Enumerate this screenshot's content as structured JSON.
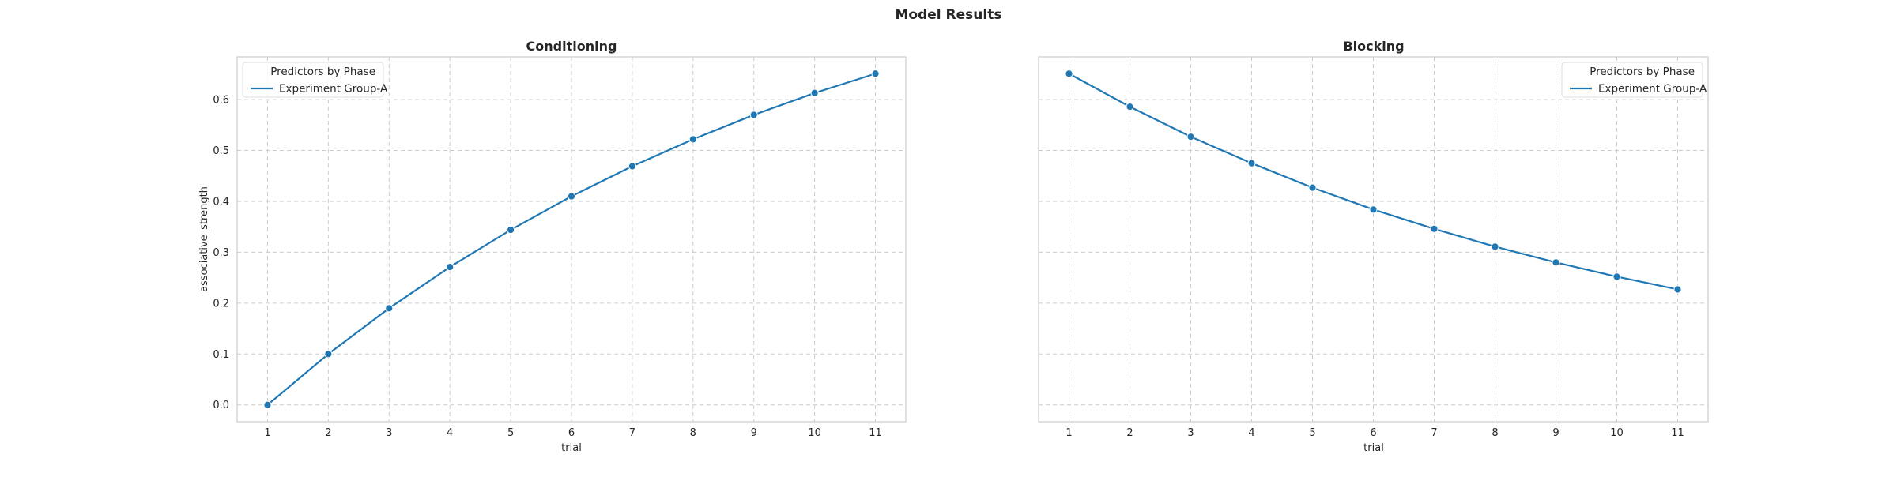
{
  "figure": {
    "title": "Model Results",
    "series_color": "#1f77b4"
  },
  "chart_data": [
    {
      "type": "line",
      "title": "Conditioning",
      "xlabel": "trial",
      "ylabel": "associative_strength",
      "x": [
        1,
        2,
        3,
        4,
        5,
        6,
        7,
        8,
        9,
        10,
        11
      ],
      "series": [
        {
          "name": "Experiment Group-A",
          "values": [
            0.0,
            0.1,
            0.19,
            0.271,
            0.344,
            0.41,
            0.469,
            0.522,
            0.57,
            0.613,
            0.651
          ]
        }
      ],
      "legend": {
        "title": "Predictors by Phase",
        "placement": "upper-left"
      },
      "xticks": [
        1,
        2,
        3,
        4,
        5,
        6,
        7,
        8,
        9,
        10,
        11
      ],
      "yticks": [
        "0.0",
        "0.1",
        "0.2",
        "0.3",
        "0.4",
        "0.5",
        "0.6"
      ],
      "xlim": [
        0.5,
        11.5
      ],
      "ylim": [
        -0.033,
        0.684
      ],
      "grid": true,
      "markers": "circle"
    },
    {
      "type": "line",
      "title": "Blocking",
      "xlabel": "trial",
      "ylabel": "",
      "x": [
        1,
        2,
        3,
        4,
        5,
        6,
        7,
        8,
        9,
        10,
        11
      ],
      "series": [
        {
          "name": "Experiment Group-A",
          "values": [
            0.651,
            0.586,
            0.527,
            0.475,
            0.427,
            0.384,
            0.346,
            0.311,
            0.28,
            0.252,
            0.227
          ]
        }
      ],
      "legend": {
        "title": "Predictors by Phase",
        "placement": "upper-right"
      },
      "xticks": [
        1,
        2,
        3,
        4,
        5,
        6,
        7,
        8,
        9,
        10,
        11
      ],
      "yticks": [],
      "xlim": [
        0.5,
        11.5
      ],
      "ylim": [
        -0.033,
        0.684
      ],
      "grid": true,
      "markers": "circle",
      "sharey": true
    }
  ]
}
